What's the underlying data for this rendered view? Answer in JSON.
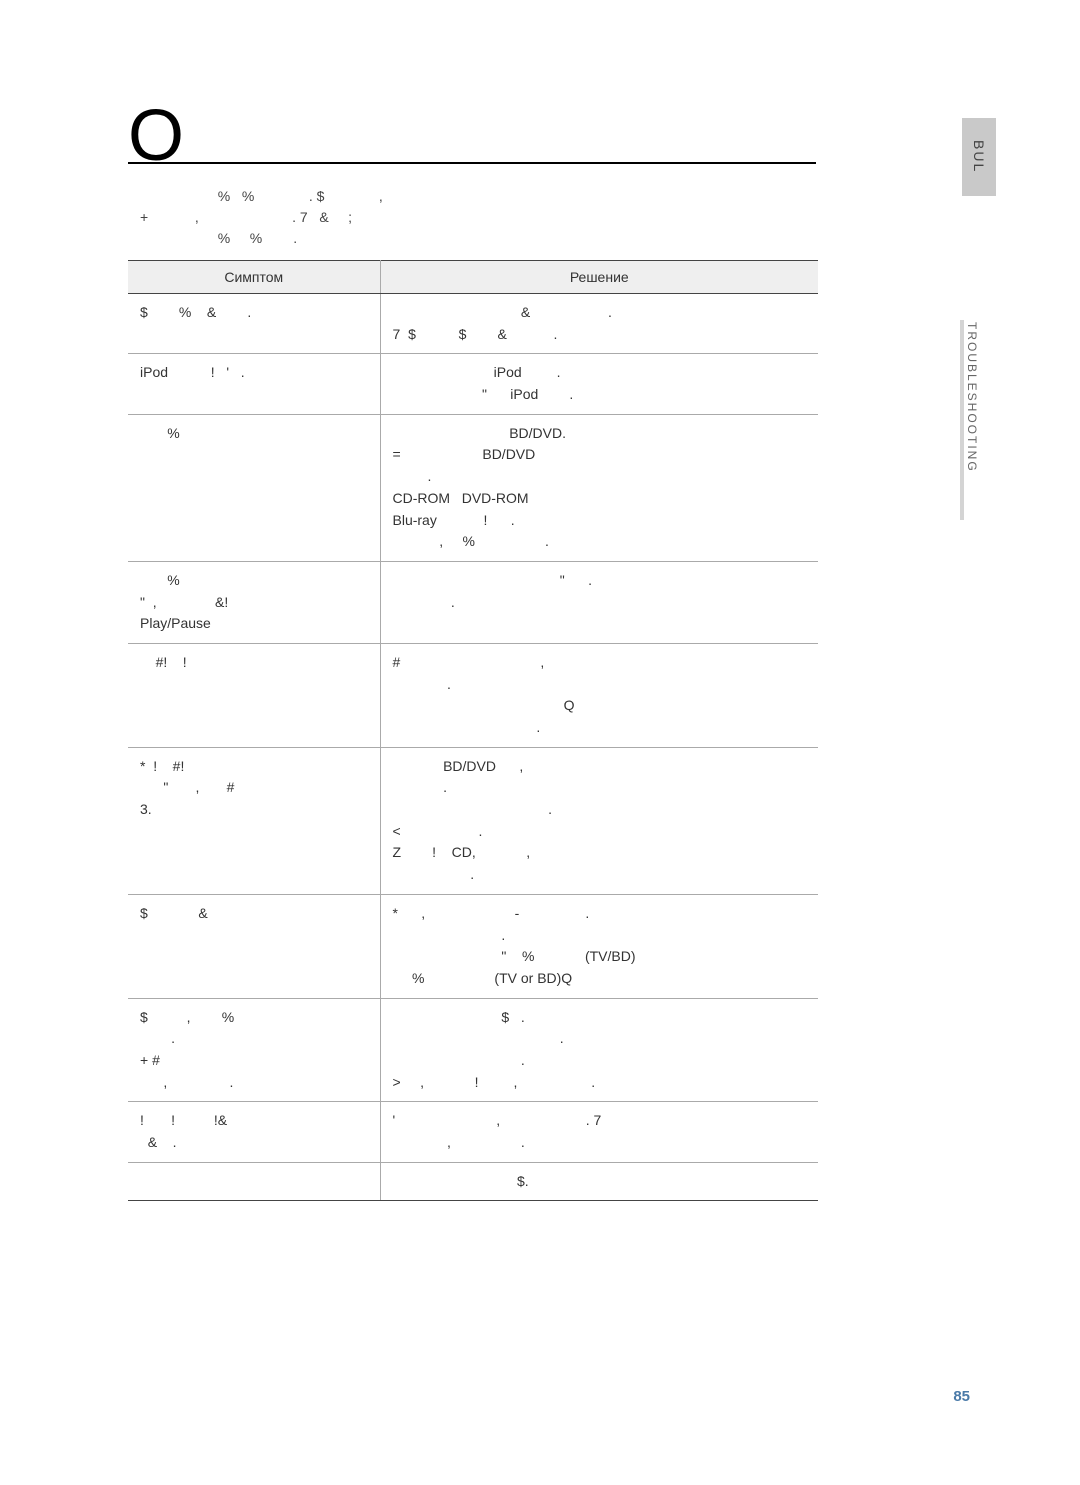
{
  "side_tab_top": "BUL",
  "side_tab_bottom": "TROUBLESHOOTING",
  "big_letter": "O",
  "intro_line1": "                    %   %              . $              ,",
  "intro_line2": "+            ,                        . 7   &     ;",
  "intro_line3": "                    %     %        .",
  "table": {
    "head_symptom": "Симптом",
    "head_solution": "Решение",
    "rows": [
      {
        "symptom": "$        %    &        .",
        "solution": "                                 &                    .\n7  $           $        &            ."
      },
      {
        "symptom": "iPod           !   '   .",
        "solution": "                          iPod         .\n                       \"      iPod        ."
      },
      {
        "symptom": "       %",
        "solution": "                              BD/DVD.\n=                     BD/DVD\n         .\nCD-ROM   DVD-ROM\nBlu-ray            !      .\n            ,     %                  ."
      },
      {
        "symptom": "       %\n\"  ,               &!\nPlay/Pause",
        "solution": "                                           \"      .\n               ."
      },
      {
        "symptom": "    #!    !",
        "solution": "#                                    ,\n              .\n                                            Q\n                                     ."
      },
      {
        "symptom": "*  !    #!\n      \"       ,       #\n3.",
        "solution": "             BD/DVD      ,\n             .\n                                        .\n<                    .\nZ        !    CD,             ,\n                    ."
      },
      {
        "symptom": "$             &",
        "solution": "*      ,                       -                 .\n                            .\n                            \"    %             (TV/BD)\n     %                  (TV or BD)Q"
      },
      {
        "symptom": "$          ,        %\n        .\n+ #\n      ,                .",
        "solution": "                            $   .\n                                           .\n                                 .\n>     ,             !         ,                   ."
      },
      {
        "symptom": "!       !          !&\n  &    .",
        "solution": "'                          ,                      . 7\n              ,                  ."
      },
      {
        "symptom": "",
        "solution": "                                $."
      }
    ]
  },
  "page_number": "85"
}
